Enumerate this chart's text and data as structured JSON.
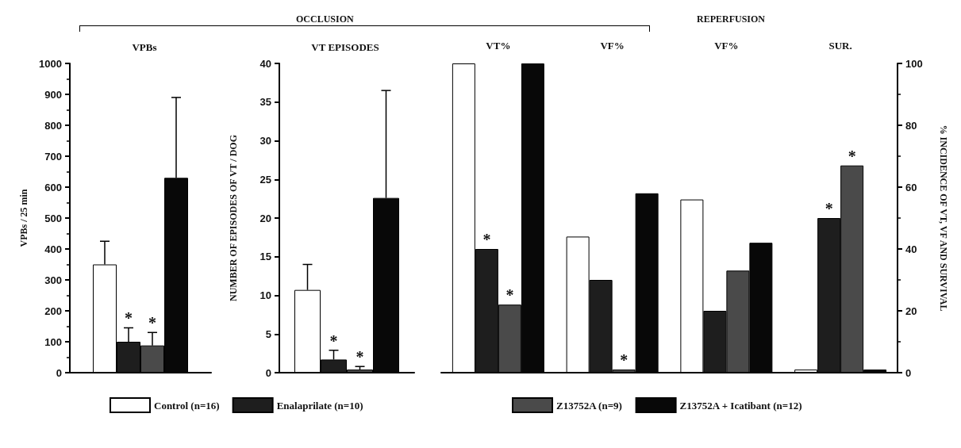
{
  "chart_data": [
    {
      "type": "bar",
      "title": "VPBs",
      "ylabel": "VPBs / 25 min",
      "categories": [
        null
      ],
      "ylim": [
        0,
        1000
      ],
      "yticks": [
        0,
        100,
        200,
        300,
        400,
        500,
        600,
        700,
        800,
        900,
        1000
      ],
      "legend": "bottom",
      "annotations": [
        "OCCLUSION",
        "REPERFUSION"
      ],
      "series": [
        {
          "name": "Control (n=16)",
          "color": "#ffffff",
          "values": [
            350
          ],
          "errors": [
            75
          ]
        },
        {
          "name": "Enalaprilate (n=10)",
          "color": "#1e1e1e",
          "values": [
            100
          ],
          "errors": [
            45
          ],
          "value_labels": [
            "*"
          ]
        },
        {
          "name": "Z13752A (n=9)",
          "color": "#4a4a4a",
          "values": [
            88
          ],
          "errors": [
            42
          ],
          "value_labels": [
            "*"
          ]
        },
        {
          "name": "Z13752A + Icatibant (n=12)",
          "color": "#080808",
          "values": [
            630
          ],
          "errors": [
            260
          ]
        }
      ]
    },
    {
      "type": "bar",
      "title": "VT EPISODES",
      "ylabel": "NUMBER OF EPISODES OF VT / DOG",
      "categories": [
        null
      ],
      "ylim": [
        0,
        40
      ],
      "yticks": [
        0,
        5,
        10,
        15,
        20,
        25,
        30,
        35,
        40
      ],
      "series": [
        {
          "color": "#ffffff",
          "values": [
            10.7
          ],
          "errors": [
            3.3
          ]
        },
        {
          "color": "#1e1e1e",
          "values": [
            1.7
          ],
          "errors": [
            1.2
          ],
          "value_labels": [
            "*"
          ]
        },
        {
          "color": "#4a4a4a",
          "values": [
            0.4
          ],
          "errors": [
            0.4
          ],
          "value_labels": [
            "*"
          ]
        },
        {
          "color": "#080808",
          "values": [
            22.6
          ],
          "errors": [
            13.9
          ]
        }
      ]
    },
    {
      "type": "bar",
      "categories": [
        "VT%",
        "VF%",
        "VF%",
        "SUR."
      ],
      "y2label": "% INCIDENCE OF VT, VF AND SURVIVAL",
      "y2lim": [
        0,
        100
      ],
      "y2ticks": [
        0,
        20,
        40,
        60,
        80,
        100
      ],
      "series": [
        {
          "color": "#ffffff",
          "axis": "y2",
          "values": [
            100,
            44,
            56,
            1
          ]
        },
        {
          "color": "#1e1e1e",
          "axis": "y2",
          "values": [
            40,
            30,
            20,
            50
          ],
          "value_labels": [
            "*",
            null,
            null,
            "*"
          ]
        },
        {
          "color": "#4a4a4a",
          "axis": "y2",
          "values": [
            22,
            1,
            33,
            67
          ],
          "value_labels": [
            "*",
            "*",
            null,
            "*"
          ]
        },
        {
          "color": "#080808",
          "axis": "y2",
          "values": [
            100,
            58,
            42,
            1
          ]
        }
      ]
    }
  ]
}
